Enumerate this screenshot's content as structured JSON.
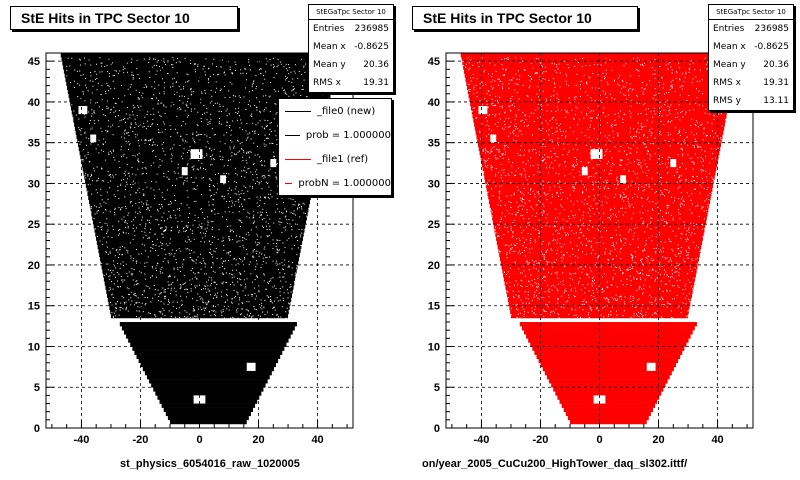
{
  "chart_data": [
    {
      "type": "scatter",
      "title": "StE Hits in TPC Sector 10",
      "xlabel": "st_physics_6054016_raw_1020005",
      "ylabel": "",
      "xlim": [
        -52,
        52
      ],
      "ylim": [
        0,
        46
      ],
      "x_ticks": [
        -40,
        -20,
        0,
        20,
        40
      ],
      "y_ticks": [
        0,
        5,
        10,
        15,
        20,
        25,
        30,
        35,
        40,
        45
      ],
      "grid": true,
      "marker_color": "#000000",
      "outline": [
        [
          -47,
          45.5
        ],
        [
          47,
          45.5
        ],
        [
          30,
          13.5
        ],
        [
          -30,
          13.5
        ],
        [
          -47,
          45.5
        ]
      ],
      "rows_gap": [
        13.5,
        12.5
      ],
      "stats": {
        "header": "StEGaTpc Sector 10",
        "rows": [
          {
            "label": "Entries",
            "value": "236985"
          },
          {
            "label": "Mean x",
            "value": "-0.8625"
          },
          {
            "label": "Mean y",
            "value": "20.36"
          },
          {
            "label": "RMS x",
            "value": "19.31"
          }
        ]
      },
      "legend": {
        "items": [
          {
            "label": "_file0 (new)",
            "color": "#000000"
          },
          {
            "label": "prob = 1.000000",
            "color": "#000000"
          },
          {
            "label": "_file1 (ref)",
            "color": "#ff0000"
          },
          {
            "label": "probN = 1.000000",
            "color": "#ff0000"
          }
        ]
      }
    },
    {
      "type": "scatter",
      "title": "StE Hits in TPC Sector 10",
      "xlabel": "on/year_2005_CuCu200_HighTower_daq_sl302.ittf/",
      "ylabel": "",
      "xlim": [
        -52,
        52
      ],
      "ylim": [
        0,
        46
      ],
      "x_ticks": [
        -40,
        -20,
        0,
        20,
        40
      ],
      "y_ticks": [
        0,
        5,
        10,
        15,
        20,
        25,
        30,
        35,
        40,
        45
      ],
      "grid": true,
      "marker_color": "#ff0000",
      "stats": {
        "header": "StEGaTpc Sector 10",
        "rows": [
          {
            "label": "Entries",
            "value": "236985"
          },
          {
            "label": "Mean x",
            "value": "-0.8625"
          },
          {
            "label": "Mean y",
            "value": "20.36"
          },
          {
            "label": "RMS x",
            "value": "19.31"
          },
          {
            "label": "RMS y",
            "value": "13.11"
          }
        ]
      }
    }
  ]
}
